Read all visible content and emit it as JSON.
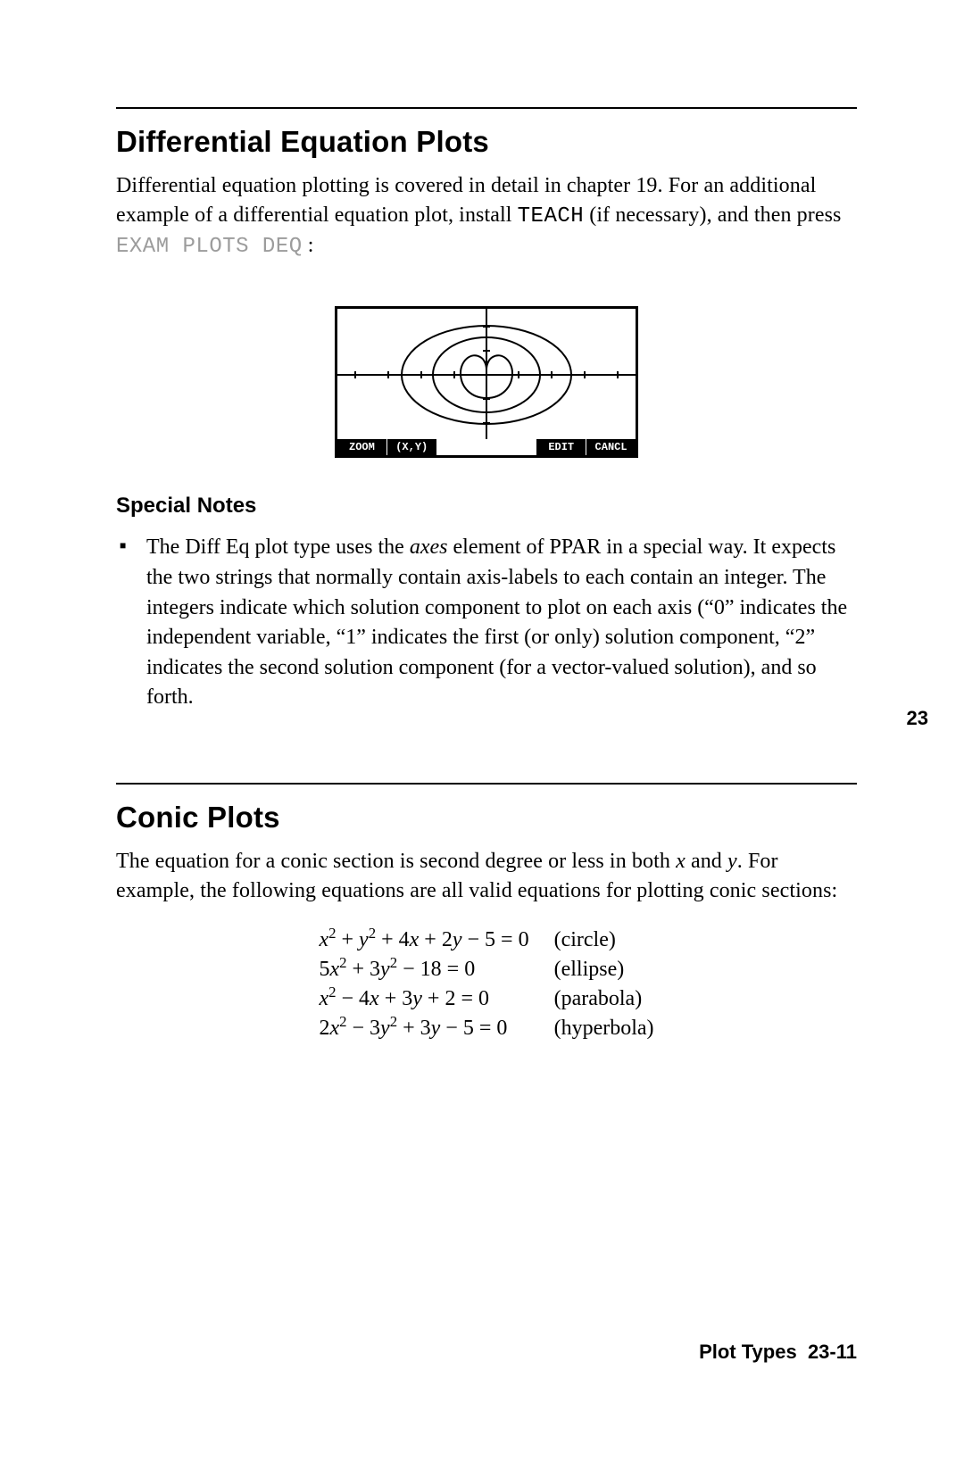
{
  "margin_number": "23",
  "section1": {
    "title": "Differential Equation Plots",
    "para_prefix": "Differential equation plotting is covered in detail in chapter 19. For an additional example of a differential equation plot, install ",
    "teach": "TEACH",
    "para_mid": " (if necessary), and then press ",
    "keys": "EXAM  PLOTS  DEQ",
    "para_suffix": " :",
    "screen": {
      "menu": [
        "ZOOM",
        "(X,Y)",
        "",
        "",
        "EDIT",
        "CANCL"
      ],
      "curves_color": "#000000"
    },
    "notes_heading": "Special Notes",
    "note1_a": "The Diff Eq plot type uses the ",
    "note1_axes": "axes",
    "note1_b": " element of PPAR in a special way. It expects the two strings that normally contain axis-labels to each contain an integer. The integers indicate which solution component to plot on each axis (“0” indicates the independent variable, “1” indicates the first (or only) solution component, “2” indicates the second solution component (for a vector-valued solution), and so forth."
  },
  "section2": {
    "title": "Conic Plots",
    "para_a": "The equation for a conic section is second degree or less in both ",
    "para_x": "x",
    "para_b": " and ",
    "para_y": "y",
    "para_c": ". For example, the following equations are all valid equations for plotting conic sections:",
    "equations": [
      {
        "left_html": "x<sup>2</sup> <span class='op'>+</span> y<sup>2</sup> <span class='op'>+</span> <span class='num'>4</span>x <span class='op'>+</span> <span class='num'>2</span>y <span class='op'>−</span> <span class='num'>5</span> <span class='op'>=</span> <span class='num'>0</span>",
        "right": "(circle)"
      },
      {
        "left_html": "<span class='num'>5</span>x<sup>2</sup> <span class='op'>+</span> <span class='num'>3</span>y<sup>2</sup> <span class='op'>−</span> <span class='num'>18</span> <span class='op'>=</span> <span class='num'>0</span>",
        "right": "(ellipse)"
      },
      {
        "left_html": "x<sup>2</sup> <span class='op'>−</span> <span class='num'>4</span>x <span class='op'>+</span> <span class='num'>3</span>y <span class='op'>+</span> <span class='num'>2</span> <span class='op'>=</span> <span class='num'>0</span>",
        "right": "(parabola)"
      },
      {
        "left_html": "<span class='num'>2</span>x<sup>2</sup> <span class='op'>−</span> <span class='num'>3</span>y<sup>2</sup> <span class='op'>+</span> <span class='num'>3</span>y <span class='op'>−</span> <span class='num'>5</span> <span class='op'>=</span> <span class='num'>0</span>",
        "right": "(hyperbola)"
      }
    ]
  },
  "footer": {
    "label": "Plot Types",
    "page": "23-11"
  }
}
